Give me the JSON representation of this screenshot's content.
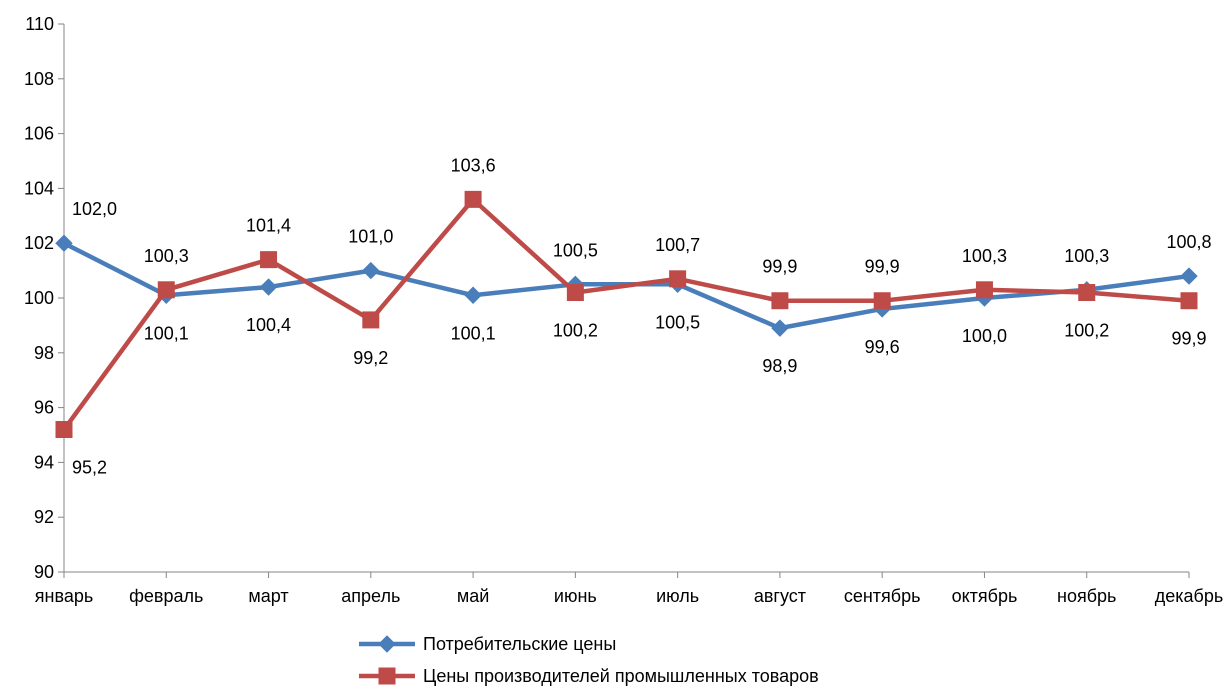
{
  "chart_data": {
    "type": "line",
    "title": "",
    "xlabel": "",
    "ylabel": "",
    "ylim": [
      90,
      110
    ],
    "yticks": [
      "90",
      "92",
      "94",
      "96",
      "98",
      "100",
      "102",
      "104",
      "106",
      "108",
      "110"
    ],
    "categories": [
      "январь",
      "февраль",
      "март",
      "апрель",
      "май",
      "июнь",
      "июль",
      "август",
      "сентябрь",
      "октябрь",
      "ноябрь",
      "декабрь"
    ],
    "grid": false,
    "legend_position": "bottom",
    "series": [
      {
        "name": "Потребительские цены",
        "color": "#4A7EBB",
        "marker": "diamond",
        "values": [
          102.0,
          100.1,
          100.4,
          101.0,
          100.1,
          100.5,
          100.5,
          98.9,
          99.6,
          100.0,
          100.3,
          100.8
        ],
        "labels": [
          "102,0",
          "100,1",
          "100,4",
          "101,0",
          "100,1",
          "100,5",
          "100,5",
          "98,9",
          "99,6",
          "100,0",
          "100,3",
          "100,8"
        ]
      },
      {
        "name": "Цены производителей промышленных товаров",
        "color": "#BE4B48",
        "marker": "square",
        "values": [
          95.2,
          100.3,
          101.4,
          99.2,
          103.6,
          100.2,
          100.7,
          99.9,
          99.9,
          100.3,
          100.2,
          99.9
        ],
        "labels": [
          "95,2",
          "100,3",
          "101,4",
          "99,2",
          "103,6",
          "100,2",
          "100,7",
          "99,9",
          "99,9",
          "100,3",
          "100,2",
          "99,9"
        ]
      }
    ]
  }
}
